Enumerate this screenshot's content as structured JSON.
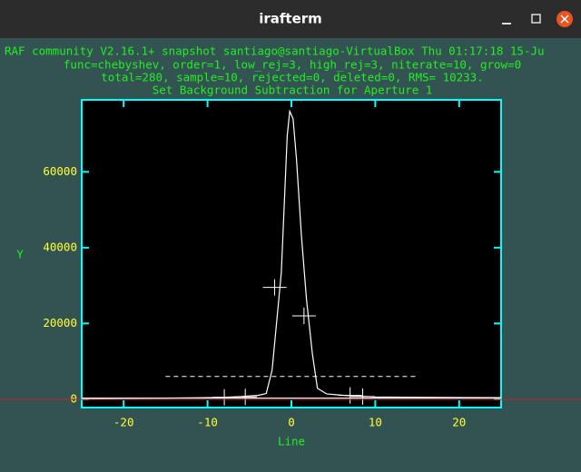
{
  "window": {
    "title": "irafterm"
  },
  "header": {
    "lines": [
      "RAF community V2.16.1+ snapshot santiago@santiago-VirtualBox Thu 01:17:18 15-Ju",
      "func=chebyshev, order=1, low_rej=3, high_rej=3, niterate=10, grow=0",
      "total=280, sample=10, rejected=0, deleted=0, RMS= 10233.",
      "Set Background Subtraction for Aperture 1"
    ]
  },
  "chart_data": {
    "type": "line",
    "x_label": "Line",
    "y_label": "Y",
    "xlim": [
      -25,
      25
    ],
    "ylim": [
      -2200,
      79000
    ],
    "xticks": [
      -20,
      -10,
      0,
      10,
      20
    ],
    "yticks": [
      0,
      20000,
      40000,
      60000
    ],
    "series": [
      {
        "kind": "line",
        "color": "#ffffff",
        "x": [
          -25,
          -15,
          -10,
          -8,
          -6,
          -4,
          -3,
          -2.3,
          -1.2,
          -0.5,
          -0.2,
          0.2,
          0.6,
          1.2,
          1.8,
          2.5,
          3.1,
          4.2,
          6.3,
          10,
          15,
          25
        ],
        "values": [
          200,
          300,
          400,
          500,
          700,
          1000,
          1500,
          7700,
          33500,
          69500,
          76000,
          74000,
          63500,
          43000,
          26300,
          12000,
          2900,
          1400,
          1000,
          600,
          500,
          400
        ]
      },
      {
        "kind": "cross",
        "color": "#ffffff",
        "x": [
          -8,
          -5.5,
          -2,
          1.5,
          7,
          8.5
        ],
        "values": [
          500,
          600,
          29500,
          22000,
          1000,
          700
        ]
      },
      {
        "kind": "dashed",
        "color": "#ffffff",
        "x": [
          -15,
          15
        ],
        "values": [
          6000,
          6000
        ]
      },
      {
        "kind": "line",
        "color": "#ffffff",
        "x": [
          -25,
          25
        ],
        "values": [
          300,
          300
        ]
      }
    ]
  }
}
